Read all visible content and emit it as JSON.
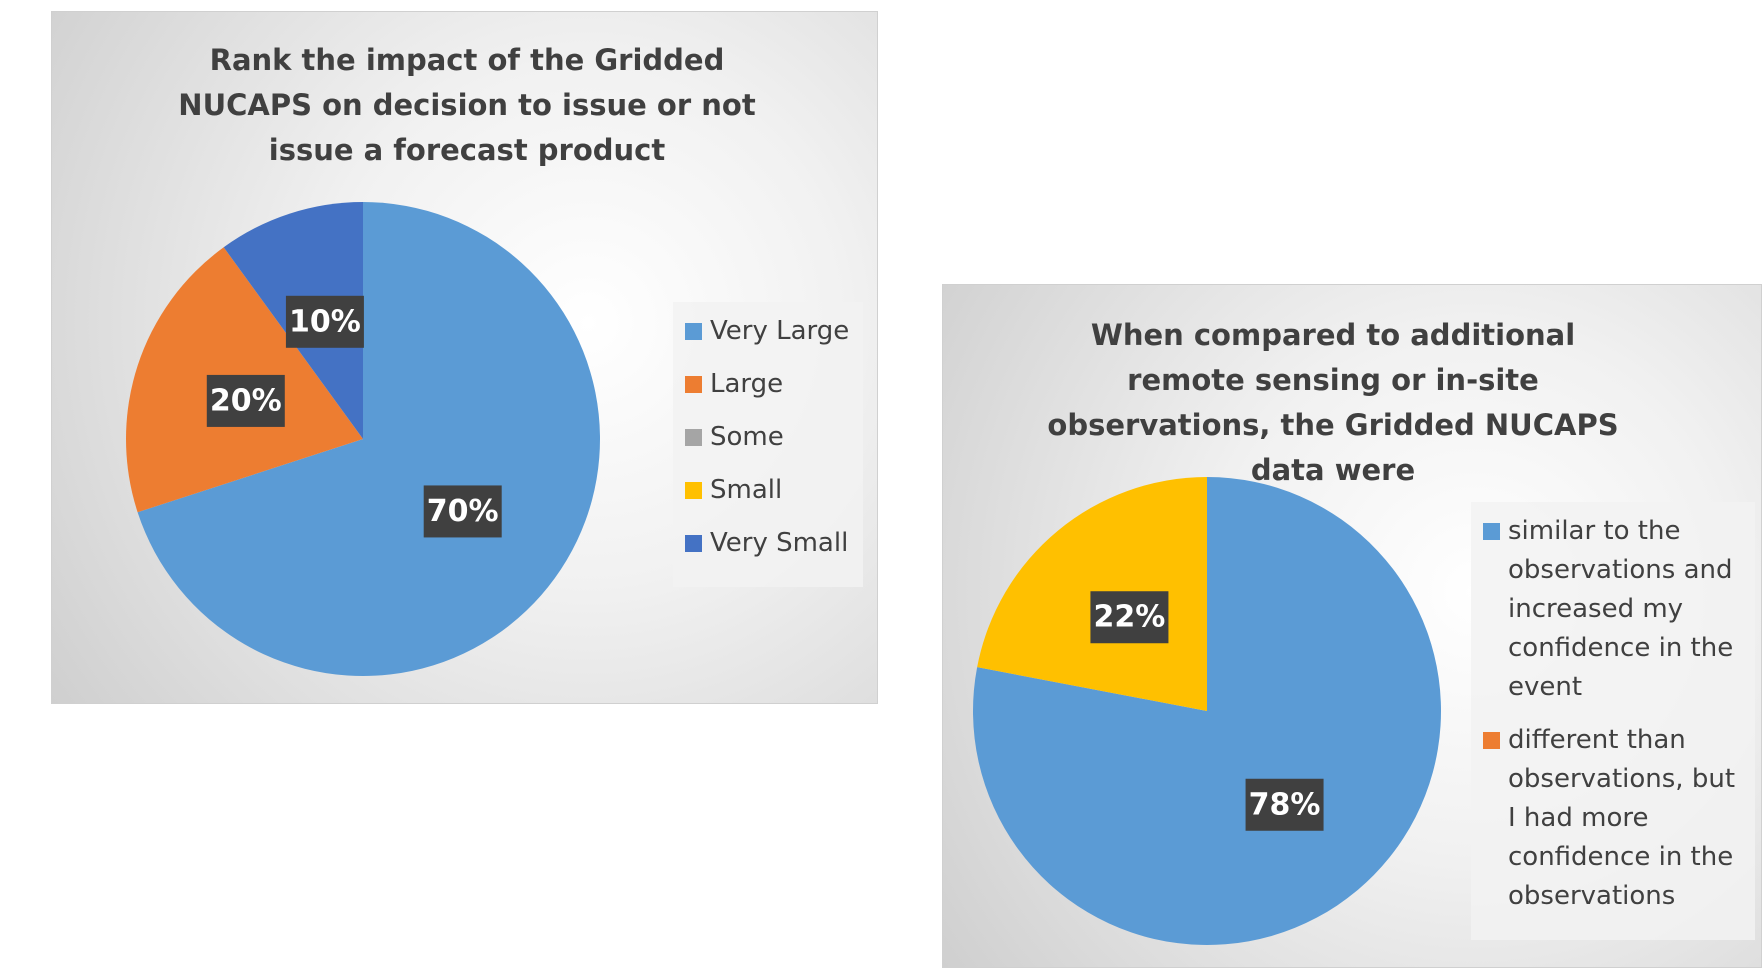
{
  "chart_data": [
    {
      "type": "pie",
      "title": "Rank the impact of the Gridded NUCAPS on decision to issue or not issue a forecast product",
      "categories": [
        "Very Large",
        "Large",
        "Some",
        "Small",
        "Very Small"
      ],
      "values": [
        70,
        20,
        0,
        0,
        10
      ],
      "value_labels": [
        "70%",
        "20%",
        null,
        null,
        "10%"
      ],
      "colors": [
        "#5b9bd5",
        "#ed7d31",
        "#a5a5a5",
        "#ffc000",
        "#4472c4"
      ],
      "legend": "right"
    },
    {
      "type": "pie",
      "title": "When compared to additional remote sensing or in-site observations, the Gridded NUCAPS data were",
      "categories": [
        "similar to the observations and increased my confidence in the event",
        "different than observations, but I had more confidence in the observations",
        null
      ],
      "values": [
        78,
        0,
        22
      ],
      "value_labels": [
        "78%",
        null,
        "22%"
      ],
      "colors": [
        "#5b9bd5",
        "#ed7d31",
        "#ffc000"
      ],
      "legend": "right"
    }
  ]
}
